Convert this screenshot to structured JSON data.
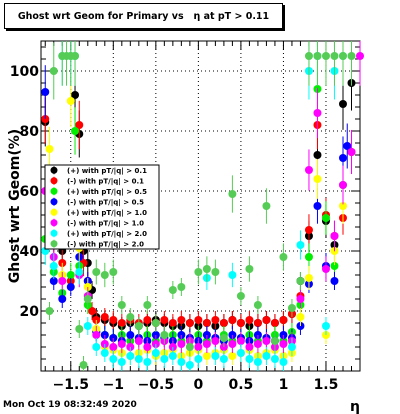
{
  "chart_data": {
    "type": "scatter",
    "title": "Ghost wrt Geom for Primary vs   η at pT > 0.11",
    "xlabel": "η",
    "ylabel": "Ghost wrt Geom(%)",
    "xlim": [
      -1.85,
      1.9
    ],
    "ylim": [
      0,
      110
    ],
    "xticks": [
      -1.5,
      -1,
      -0.5,
      0,
      0.5,
      1,
      1.5
    ],
    "xtick_labels": [
      "−1.5",
      "−1",
      "−0.5",
      "0",
      "0.5",
      "1",
      "1.5"
    ],
    "yticks": [
      0,
      20,
      40,
      60,
      80,
      100
    ],
    "ytick_labels": [
      "",
      "20",
      "40",
      "60",
      "80",
      "100"
    ],
    "grid": true,
    "legend_position": "left-middle",
    "series": [
      {
        "name": "(+) with pT/|q| > 0.1",
        "color": "#000000",
        "x": [
          -1.8,
          -1.7,
          -1.6,
          -1.5,
          -1.45,
          -1.4,
          -1.35,
          -1.3,
          -1.25,
          -1.2,
          -1.1,
          -1.0,
          -0.9,
          -0.8,
          -0.7,
          -0.6,
          -0.5,
          -0.4,
          -0.3,
          -0.2,
          -0.1,
          0.0,
          0.1,
          0.2,
          0.3,
          0.4,
          0.5,
          0.6,
          0.7,
          0.8,
          0.9,
          1.0,
          1.1,
          1.2,
          1.3,
          1.4,
          1.5,
          1.6,
          1.7,
          1.8
        ],
        "y": [
          83,
          45,
          40,
          60,
          92,
          79,
          40,
          36,
          27,
          18,
          17,
          16,
          15,
          16,
          15,
          16,
          17,
          16,
          15,
          15,
          16,
          15,
          16,
          15,
          16,
          17,
          16,
          15,
          16,
          17,
          16,
          17,
          19,
          30,
          45,
          72,
          50,
          42,
          89,
          96
        ]
      },
      {
        "name": "(-) with pT/|q| > 0.1",
        "color": "#ff0000",
        "x": [
          -1.8,
          -1.7,
          -1.6,
          -1.5,
          -1.4,
          -1.35,
          -1.3,
          -1.25,
          -1.2,
          -1.1,
          -1.0,
          -0.9,
          -0.8,
          -0.7,
          -0.6,
          -0.5,
          -0.4,
          -0.3,
          -0.2,
          -0.1,
          0.0,
          0.1,
          0.2,
          0.3,
          0.4,
          0.5,
          0.6,
          0.7,
          0.8,
          0.9,
          1.0,
          1.1,
          1.2,
          1.3,
          1.4,
          1.5,
          1.6,
          1.7,
          1.8
        ],
        "y": [
          84,
          42,
          36,
          30,
          82,
          36,
          30,
          20,
          17,
          18,
          17,
          16,
          17,
          16,
          17,
          16,
          17,
          16,
          17,
          16,
          17,
          16,
          17,
          16,
          17,
          16,
          17,
          16,
          17,
          16,
          17,
          19,
          25,
          47,
          82,
          52,
          45,
          51,
          73
        ]
      },
      {
        "name": "(+) with pT/|q| > 0.5",
        "color": "#00ee00",
        "x": [
          -1.8,
          -1.7,
          -1.6,
          -1.5,
          -1.45,
          -1.4,
          -1.3,
          -1.2,
          -1.1,
          -1.0,
          -0.9,
          -0.8,
          -0.7,
          -0.6,
          -0.5,
          -0.4,
          -0.3,
          -0.2,
          -0.1,
          0.0,
          0.1,
          0.2,
          0.3,
          0.4,
          0.5,
          0.6,
          0.7,
          0.8,
          0.9,
          1.0,
          1.1,
          1.2,
          1.3,
          1.4,
          1.5,
          1.6,
          1.7
        ],
        "y": [
          44,
          33,
          26,
          32,
          80,
          35,
          22,
          13,
          12,
          11,
          12,
          10,
          11,
          12,
          10,
          11,
          12,
          10,
          11,
          12,
          10,
          11,
          12,
          10,
          11,
          12,
          10,
          11,
          12,
          10,
          13,
          22,
          38,
          94,
          51,
          35,
          62
        ]
      },
      {
        "name": "(-) with pT/|q| > 0.5",
        "color": "#0000ff",
        "x": [
          -1.8,
          -1.7,
          -1.6,
          -1.5,
          -1.4,
          -1.3,
          -1.2,
          -1.1,
          -1.0,
          -0.9,
          -0.8,
          -0.7,
          -0.6,
          -0.5,
          -0.4,
          -0.3,
          -0.2,
          -0.1,
          0.0,
          0.1,
          0.2,
          0.3,
          0.4,
          0.5,
          0.6,
          0.7,
          0.8,
          0.9,
          1.0,
          1.1,
          1.2,
          1.3,
          1.4,
          1.5,
          1.6,
          1.7,
          1.75
        ],
        "y": [
          93,
          30,
          24,
          28,
          38,
          30,
          13,
          12,
          11,
          10,
          12,
          11,
          10,
          12,
          11,
          10,
          12,
          11,
          10,
          12,
          11,
          10,
          12,
          11,
          10,
          12,
          11,
          10,
          12,
          11,
          15,
          29,
          55,
          35,
          30,
          71,
          75
        ]
      },
      {
        "name": "(+) with pT/|q| > 1.0",
        "color": "#ffff00",
        "x": [
          -1.75,
          -1.6,
          -1.5,
          -1.4,
          -1.3,
          -1.2,
          -1.1,
          -1.0,
          -0.9,
          -0.8,
          -0.7,
          -0.6,
          -0.5,
          -0.4,
          -0.3,
          -0.2,
          -0.1,
          0.0,
          0.1,
          0.2,
          0.3,
          0.4,
          0.5,
          0.6,
          0.7,
          0.8,
          0.9,
          1.0,
          1.1,
          1.2,
          1.3,
          1.4,
          1.5,
          1.6,
          1.7
        ],
        "y": [
          74,
          32,
          90,
          41,
          28,
          14,
          8,
          7,
          6,
          5,
          6,
          7,
          5,
          6,
          7,
          5,
          6,
          7,
          5,
          6,
          7,
          5,
          6,
          7,
          5,
          6,
          7,
          5,
          6,
          18,
          31,
          64,
          12,
          40,
          55
        ]
      },
      {
        "name": "(-) with pT/|q| > 1.0",
        "color": "#ff00ff",
        "x": [
          -1.8,
          -1.7,
          -1.6,
          -1.5,
          -1.4,
          -1.3,
          -1.2,
          -1.1,
          -1.0,
          -0.9,
          -0.8,
          -0.7,
          -0.6,
          -0.5,
          -0.4,
          -0.3,
          -0.2,
          -0.1,
          0.0,
          0.1,
          0.2,
          0.3,
          0.4,
          0.5,
          0.6,
          0.7,
          0.8,
          0.9,
          1.0,
          1.1,
          1.2,
          1.3,
          1.4,
          1.5,
          1.6,
          1.7,
          1.8,
          1.9
        ],
        "y": [
          60,
          38,
          30,
          50,
          32,
          25,
          12,
          9,
          8,
          9,
          8,
          10,
          8,
          9,
          10,
          8,
          9,
          10,
          8,
          9,
          10,
          8,
          9,
          10,
          8,
          9,
          10,
          8,
          9,
          10,
          24,
          67,
          86,
          34,
          45,
          62,
          73,
          105
        ]
      },
      {
        "name": "(+) with pT/|q| > 2.0",
        "color": "#00ffff",
        "x": [
          -1.8,
          -1.7,
          -1.6,
          -1.5,
          -1.45,
          -1.4,
          -1.3,
          -1.2,
          -1.1,
          -1.0,
          -0.9,
          -0.8,
          -0.7,
          -0.6,
          -0.5,
          -0.4,
          -0.3,
          -0.2,
          -0.1,
          0.0,
          0.1,
          0.2,
          0.3,
          0.4,
          0.5,
          0.6,
          0.7,
          0.8,
          0.9,
          1.0,
          1.1,
          1.2,
          1.3,
          1.4,
          1.5,
          1.6,
          1.7
        ],
        "y": [
          40,
          35,
          105,
          105,
          105,
          33,
          15,
          8,
          6,
          4,
          3,
          5,
          4,
          3,
          6,
          4,
          5,
          3,
          2,
          4,
          31,
          5,
          4,
          32,
          6,
          4,
          3,
          5,
          4,
          3,
          8,
          42,
          100,
          105,
          15,
          100,
          105
        ]
      },
      {
        "name": "(-) with pT/|q| > 2.0",
        "color": "#55cc55",
        "x": [
          -1.75,
          -1.7,
          -1.6,
          -1.55,
          -1.5,
          -1.45,
          -1.4,
          -1.35,
          -1.3,
          -1.2,
          -1.1,
          -1.0,
          -0.9,
          -0.8,
          -0.7,
          -0.6,
          -0.5,
          -0.4,
          -0.3,
          -0.2,
          -0.1,
          0.0,
          0.1,
          0.2,
          0.3,
          0.4,
          0.5,
          0.6,
          0.7,
          0.8,
          0.9,
          1.0,
          1.1,
          1.2,
          1.3,
          1.4,
          1.5,
          1.6,
          1.7,
          1.8
        ],
        "y": [
          20,
          100,
          105,
          105,
          105,
          105,
          14,
          2,
          24,
          33,
          32,
          33,
          22,
          18,
          15,
          22,
          16,
          12,
          27,
          28,
          8,
          33,
          34,
          33,
          11,
          59,
          25,
          34,
          22,
          55,
          10,
          38,
          21,
          30,
          105,
          105,
          105,
          105,
          105,
          105
        ]
      }
    ]
  },
  "footer": {
    "datestamp": "Mon Oct 19 08:32:49 2020"
  }
}
